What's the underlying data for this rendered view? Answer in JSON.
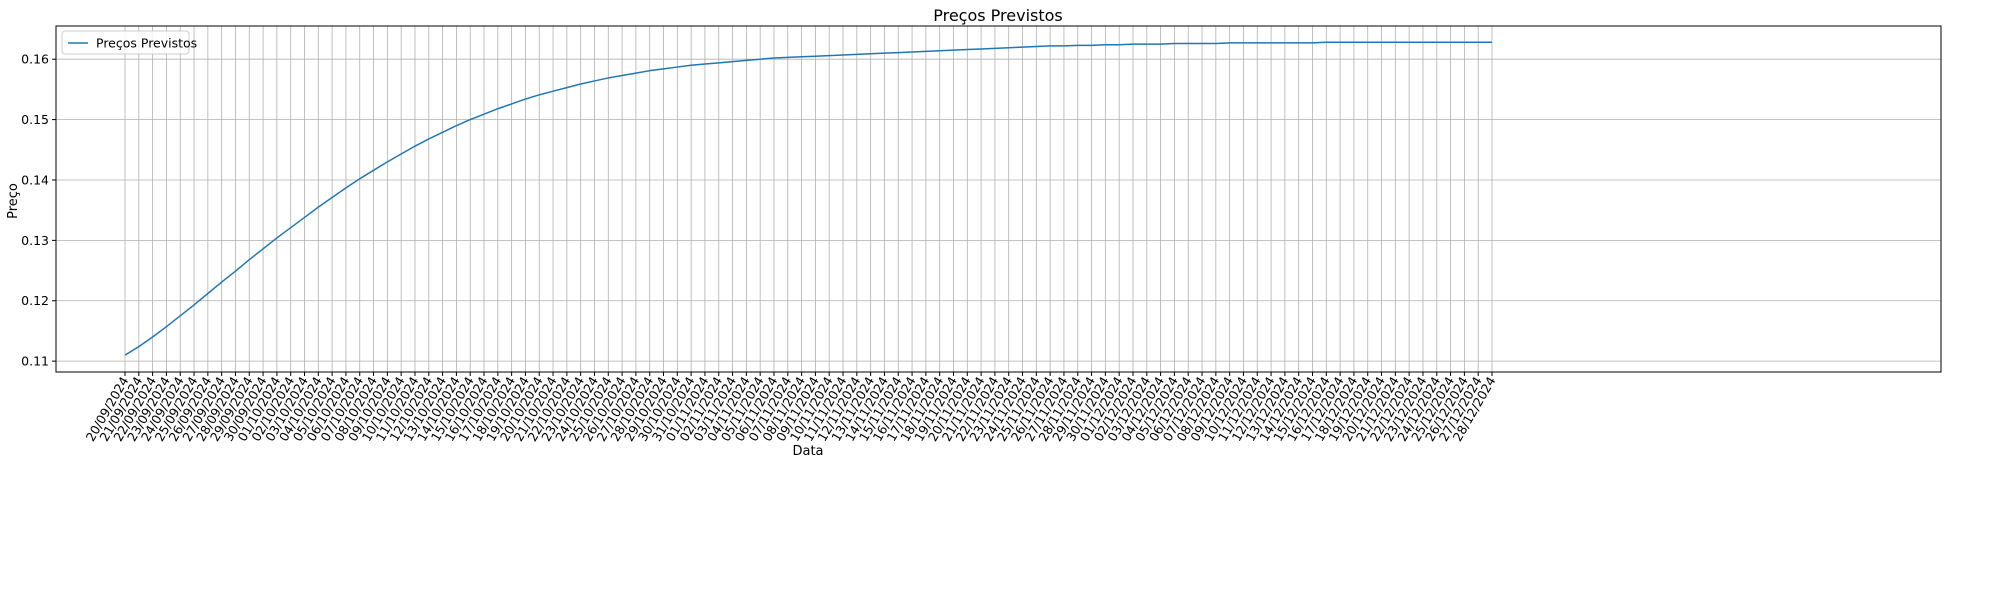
{
  "chart_data": {
    "type": "line",
    "title": "Preços Previstos",
    "xlabel": "Data",
    "ylabel": "Preço",
    "x": [
      "20/09/2024",
      "21/09/2024",
      "22/09/2024",
      "23/09/2024",
      "24/09/2024",
      "25/09/2024",
      "26/09/2024",
      "27/09/2024",
      "28/09/2024",
      "29/09/2024",
      "30/09/2024",
      "01/10/2024",
      "02/10/2024",
      "03/10/2024",
      "04/10/2024",
      "05/10/2024",
      "06/10/2024",
      "07/10/2024",
      "08/10/2024",
      "09/10/2024",
      "10/10/2024",
      "11/10/2024",
      "12/10/2024",
      "13/10/2024",
      "14/10/2024",
      "15/10/2024",
      "16/10/2024",
      "17/10/2024",
      "18/10/2024",
      "19/10/2024",
      "20/10/2024",
      "21/10/2024",
      "22/10/2024",
      "23/10/2024",
      "24/10/2024",
      "25/10/2024",
      "26/10/2024",
      "27/10/2024",
      "28/10/2024",
      "29/10/2024",
      "30/10/2024",
      "31/10/2024",
      "01/11/2024",
      "02/11/2024",
      "03/11/2024",
      "04/11/2024",
      "05/11/2024",
      "06/11/2024",
      "07/11/2024",
      "08/11/2024",
      "09/11/2024",
      "10/11/2024",
      "11/11/2024",
      "12/11/2024",
      "13/11/2024",
      "14/11/2024",
      "15/11/2024",
      "16/11/2024",
      "17/11/2024",
      "18/11/2024",
      "19/11/2024",
      "20/11/2024",
      "21/11/2024",
      "22/11/2024",
      "23/11/2024",
      "24/11/2024",
      "25/11/2024",
      "26/11/2024",
      "27/11/2024",
      "28/11/2024",
      "29/11/2024",
      "30/11/2024",
      "01/12/2024",
      "02/12/2024",
      "03/12/2024",
      "04/12/2024",
      "05/12/2024",
      "06/12/2024",
      "07/12/2024",
      "08/12/2024",
      "09/12/2024",
      "10/12/2024",
      "11/12/2024",
      "12/12/2024",
      "13/12/2024",
      "14/12/2024",
      "15/12/2024",
      "16/12/2024",
      "17/12/2024",
      "18/12/2024",
      "19/12/2024",
      "20/12/2024",
      "21/12/2024",
      "22/12/2024",
      "23/12/2024",
      "24/12/2024",
      "25/12/2024",
      "26/12/2024",
      "27/12/2024",
      "28/12/2024"
    ],
    "series": [
      {
        "name": "Preços Previstos",
        "color": "#1f77b4",
        "values": [
          0.111,
          0.1124,
          0.114,
          0.1157,
          0.1175,
          0.1193,
          0.1212,
          0.1231,
          0.1249,
          0.1268,
          0.1286,
          0.1304,
          0.1321,
          0.1338,
          0.1355,
          0.1371,
          0.1387,
          0.1402,
          0.1416,
          0.143,
          0.1443,
          0.1456,
          0.1468,
          0.1479,
          0.149,
          0.15,
          0.1509,
          0.1518,
          0.1526,
          0.1534,
          0.1541,
          0.1547,
          0.1553,
          0.1559,
          0.1564,
          0.1569,
          0.1573,
          0.1577,
          0.1581,
          0.1584,
          0.1587,
          0.159,
          0.1592,
          0.1594,
          0.1596,
          0.1598,
          0.16,
          0.1602,
          0.1603,
          0.1604,
          0.1605,
          0.1606,
          0.1607,
          0.1608,
          0.1609,
          0.161,
          0.1611,
          0.1612,
          0.1613,
          0.1614,
          0.1615,
          0.1616,
          0.1617,
          0.1618,
          0.1619,
          0.162,
          0.1621,
          0.1622,
          0.1622,
          0.1623,
          0.1623,
          0.1624,
          0.1624,
          0.1625,
          0.1625,
          0.1625,
          0.1626,
          0.1626,
          0.1626,
          0.1626,
          0.1627,
          0.1627,
          0.1627,
          0.1627,
          0.1627,
          0.1627,
          0.1627,
          0.1628,
          0.1628,
          0.1628,
          0.1628,
          0.1628,
          0.1628,
          0.1628,
          0.1628,
          0.1628,
          0.1628,
          0.1628,
          0.1628,
          0.1628
        ]
      }
    ],
    "yticks": [
      0.11,
      0.12,
      0.13,
      0.14,
      0.15,
      0.16
    ],
    "ylim": [
      0.1082,
      0.1655
    ],
    "grid": true,
    "legend_position": "top-left"
  }
}
